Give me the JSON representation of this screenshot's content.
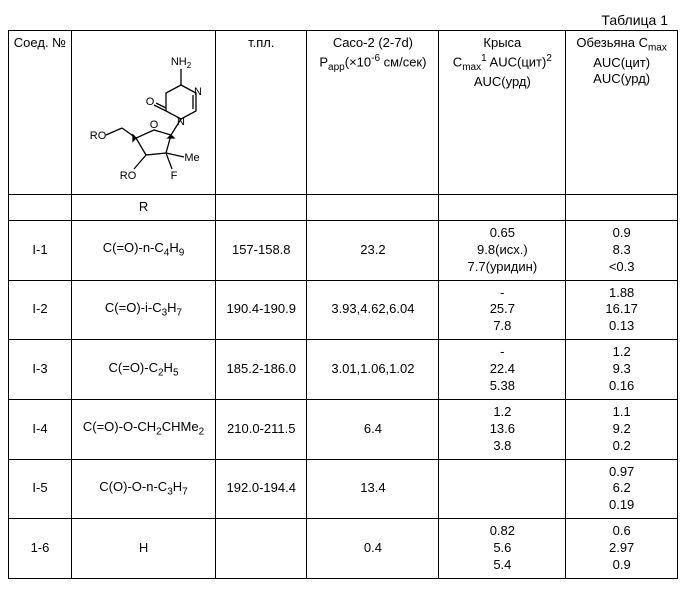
{
  "caption": "Таблица 1",
  "headers": {
    "col_id": "Соед. №",
    "col_struct_sub": "R",
    "col_mp": "т.пл.",
    "col_caco_l1": "Caco-2 (2-7d)",
    "col_caco_l2_pre": "P",
    "col_caco_l2_sub": "app",
    "col_caco_l2_mid": "(×10",
    "col_caco_l2_sup": "-6",
    "col_caco_l2_post": " см/сек)",
    "col_rat_l1": "Крыса",
    "col_rat_l2_a": "C",
    "col_rat_l2_a_sub": "max",
    "col_rat_l2_a_sup": "1",
    "col_rat_l2_b": " AUC(цит)",
    "col_rat_l2_b_sup": "2",
    "col_rat_l3": "AUC(урд)",
    "col_monk_l1_a": "Обезьяна C",
    "col_monk_l1_a_sub": "max",
    "col_monk_l2": "AUC(цит)",
    "col_monk_l3": "AUC(урд)"
  },
  "rows": [
    {
      "id": "I-1",
      "r_pre": "C(=O)-n-C",
      "r_sub1": "4",
      "r_mid": "H",
      "r_sub2": "9",
      "mp": "157-158.8",
      "caco": "23.2",
      "rat": [
        "0.65",
        "9.8(исх.)",
        "7.7(уридин)"
      ],
      "monk": [
        "0.9",
        "8.3",
        "<0.3"
      ]
    },
    {
      "id": "I-2",
      "r_pre": "C(=O)-i-C",
      "r_sub1": "3",
      "r_mid": "H",
      "r_sub2": "7",
      "mp": "190.4-190.9",
      "caco": "3.93,4.62,6.04",
      "rat": [
        "-",
        "25.7",
        "7.8"
      ],
      "monk": [
        "1.88",
        "16.17",
        "0.13"
      ]
    },
    {
      "id": "I-3",
      "r_pre": "C(=O)-C",
      "r_sub1": "2",
      "r_mid": "H",
      "r_sub2": "5",
      "mp": "185.2-186.0",
      "caco": "3.01,1.06,1.02",
      "rat": [
        "-",
        "22.4",
        "5.38"
      ],
      "monk": [
        "1.2",
        "9.3",
        "0.16"
      ]
    },
    {
      "id": "I-4",
      "r_pre": "C(=O)-O-CH",
      "r_sub1": "2",
      "r_mid": "CHMe",
      "r_sub2": "2",
      "mp": "210.0-211.5",
      "caco": "6.4",
      "rat": [
        "1.2",
        "13.6",
        "3.8"
      ],
      "monk": [
        "1.1",
        "9.2",
        "0.2"
      ]
    },
    {
      "id": "I-5",
      "r_pre": "C(O)-O-n-C",
      "r_sub1": "3",
      "r_mid": "H",
      "r_sub2": "7",
      "mp": "192.0-194.4",
      "caco": "13.4",
      "rat": [
        "",
        "",
        ""
      ],
      "monk": [
        "0.97",
        "6.2",
        "0.19"
      ]
    },
    {
      "id": "1-6",
      "r_plain": "H",
      "mp": "",
      "caco": "0.4",
      "rat": [
        "0.82",
        "5.6",
        "5.4"
      ],
      "monk": [
        "0.6",
        "2.97",
        "0.9"
      ]
    }
  ],
  "struct_labels": {
    "nh2": "NH",
    "nh2_sub": "2",
    "n1": "N",
    "n2": "N",
    "o_ring": "O",
    "o_carbonyl": "O",
    "ro1": "RO",
    "ro2": "RO",
    "me": "Me",
    "f": "F"
  },
  "style": {
    "struct_fontsize": 11,
    "row_line_height": 1.3
  }
}
